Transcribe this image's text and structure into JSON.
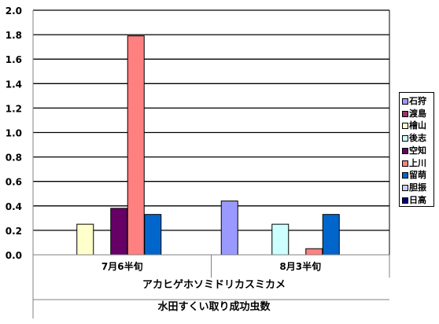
{
  "chart_data": {
    "type": "bar",
    "title": "",
    "xlabel_line1": "アカヒゲホソミドリカスミカメ",
    "xlabel_line2": "水田すくい取り成功虫数",
    "ylabel": "",
    "ylim": [
      0,
      2.0
    ],
    "yticks": [
      "0.0",
      "0.2",
      "0.4",
      "0.6",
      "0.8",
      "1.0",
      "1.2",
      "1.4",
      "1.6",
      "1.8",
      "2.0"
    ],
    "categories": [
      "7月6半旬",
      "8月3半旬"
    ],
    "grid": true,
    "legend_position": "right",
    "series": [
      {
        "name": "石狩",
        "color": "#9999ff",
        "values": [
          0,
          0.44
        ]
      },
      {
        "name": "渡島",
        "color": "#993366",
        "values": [
          0,
          0
        ]
      },
      {
        "name": "檜山",
        "color": "#ffffcc",
        "values": [
          0.25,
          0
        ]
      },
      {
        "name": "後志",
        "color": "#ccffff",
        "values": [
          0,
          0.25
        ]
      },
      {
        "name": "空知",
        "color": "#660066",
        "values": [
          0.38,
          0
        ]
      },
      {
        "name": "上川",
        "color": "#ff8080",
        "values": [
          1.79,
          0.05
        ]
      },
      {
        "name": "留萌",
        "color": "#0066cc",
        "values": [
          0.33,
          0.33
        ]
      },
      {
        "name": "胆振",
        "color": "#ccccff",
        "values": [
          0,
          0
        ]
      },
      {
        "name": "日高",
        "color": "#000080",
        "values": [
          0,
          0
        ]
      }
    ]
  }
}
